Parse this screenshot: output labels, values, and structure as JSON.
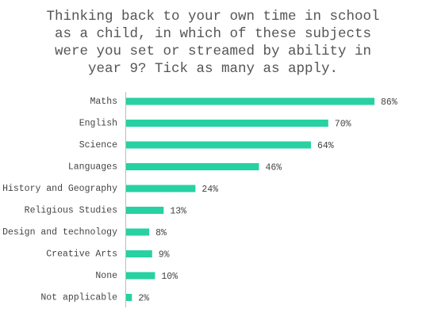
{
  "chart_data": {
    "type": "bar",
    "orientation": "horizontal",
    "title": "Thinking back to your own time in school as a child, in which of these subjects were you set or streamed by ability in year 9? Tick as many as apply.",
    "categories": [
      "Maths",
      "English",
      "Science",
      "Languages",
      "History and Geography",
      "Religious Studies",
      "Design and technology",
      "Creative Arts",
      "None",
      "Not applicable"
    ],
    "values": [
      86,
      70,
      64,
      46,
      24,
      13,
      8,
      9,
      10,
      2
    ],
    "value_labels": [
      "86%",
      "70%",
      "64%",
      "46%",
      "24%",
      "13%",
      "8%",
      "9%",
      "10%",
      "2%"
    ],
    "color": "#27d1a2"
  }
}
